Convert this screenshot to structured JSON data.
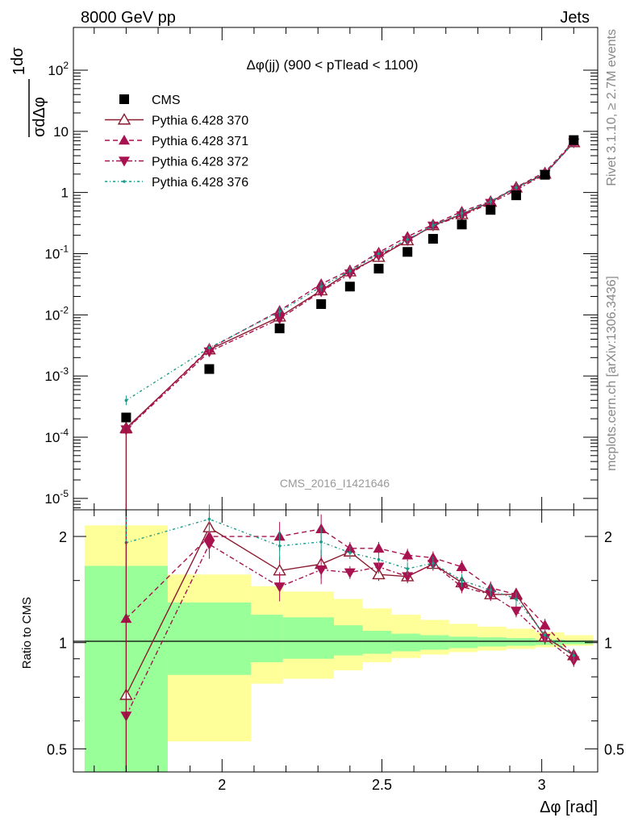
{
  "header": {
    "left": "8000 GeV pp",
    "right": "Jets",
    "side_top": "Rivet 3.1.10, ≥ 2.7M events",
    "side_bottom": "mcplots.cern.ch [arXiv:1306.3436]",
    "watermark": "CMS_2016_I1421646"
  },
  "chart_data": [
    {
      "type": "scatter",
      "title": "Δφ(jj) (900 < pTlead <  1100)",
      "ylabel": "1/σ dσ/dΔφ [rad⁻¹]",
      "yscale": "log",
      "xlim": [
        1.535,
        3.175
      ],
      "ylim": [
        6.5e-06,
        500
      ],
      "x_ticks": [
        "2",
        "2.5",
        "3"
      ],
      "y_ticks": [
        "10^-5",
        "10^-4",
        "10^-3",
        "10^-2",
        "10^-1",
        "1",
        "10",
        "10^2"
      ],
      "x": [
        1.7,
        1.96,
        2.18,
        2.31,
        2.4,
        2.49,
        2.58,
        2.66,
        2.75,
        2.84,
        2.92,
        3.01,
        3.1
      ],
      "data": {
        "name": "CMS",
        "color": "#000000",
        "values": [
          0.00021,
          0.0013,
          0.006,
          0.015,
          0.029,
          0.057,
          0.107,
          0.175,
          0.3,
          0.52,
          0.9,
          1.95,
          7.2
        ]
      },
      "series": [
        {
          "name": "Pythia 6.428 370",
          "color": "#8b1a2f",
          "marker": "triangle-open",
          "dash": "",
          "values": [
            0.00014,
            0.0027,
            0.0093,
            0.025,
            0.051,
            0.088,
            0.164,
            0.29,
            0.44,
            0.7,
            1.2,
            2.02,
            6.6
          ]
        },
        {
          "name": "Pythia 6.428 371",
          "color": "#a8124f",
          "marker": "triangle-up",
          "dash": "6,4",
          "values": [
            0.000135,
            0.0028,
            0.0117,
            0.032,
            0.054,
            0.105,
            0.19,
            0.3,
            0.49,
            0.72,
            1.22,
            2.15,
            6.8
          ]
        },
        {
          "name": "Pythia 6.428 372",
          "color": "#a8124f",
          "marker": "triangle-down",
          "dash": "6,3,2,3",
          "values": [
            0.000133,
            0.0025,
            0.0086,
            0.024,
            0.047,
            0.093,
            0.165,
            0.285,
            0.42,
            0.67,
            1.1,
            2.0,
            6.5
          ]
        },
        {
          "name": "Pythia 6.428 376",
          "color": "#1a9a88",
          "marker": "dot",
          "dash": "3,3,1,3",
          "values": [
            0.0004,
            0.0029,
            0.0112,
            0.029,
            0.052,
            0.1,
            0.17,
            0.29,
            0.46,
            0.71,
            1.2,
            2.05,
            6.55
          ]
        }
      ]
    },
    {
      "type": "line",
      "ylabel": "Ratio to CMS",
      "xlabel": "Δφ [rad]",
      "yscale": "log",
      "xlim": [
        1.535,
        3.175
      ],
      "ylim": [
        0.43,
        2.38
      ],
      "y_ticks": [
        "0.5",
        "1",
        "2"
      ],
      "reference": 1,
      "x": [
        1.7,
        1.96,
        2.18,
        2.31,
        2.4,
        2.49,
        2.58,
        2.66,
        2.75,
        2.84,
        2.92,
        3.01,
        3.1
      ],
      "band_edges": [
        1.57,
        1.83,
        2.09,
        2.19,
        2.35,
        2.44,
        2.53,
        2.62,
        2.71,
        2.8,
        2.89,
        2.98,
        3.07,
        3.16
      ],
      "stat_band": [
        [
          0.43,
          1.65
        ],
        [
          0.81,
          1.3
        ],
        [
          0.88,
          1.2
        ],
        [
          0.9,
          1.18
        ],
        [
          0.92,
          1.12
        ],
        [
          0.93,
          1.08
        ],
        [
          0.945,
          1.06
        ],
        [
          0.955,
          1.05
        ],
        [
          0.965,
          1.04
        ],
        [
          0.975,
          1.035
        ],
        [
          0.98,
          1.03
        ],
        [
          0.985,
          1.02
        ],
        [
          0.99,
          1.015
        ]
      ],
      "total_band": [
        [
          0.43,
          2.15
        ],
        [
          0.525,
          1.56
        ],
        [
          0.765,
          1.445
        ],
        [
          0.79,
          1.395
        ],
        [
          0.835,
          1.33
        ],
        [
          0.88,
          1.25
        ],
        [
          0.905,
          1.2
        ],
        [
          0.925,
          1.16
        ],
        [
          0.94,
          1.13
        ],
        [
          0.95,
          1.11
        ],
        [
          0.96,
          1.095
        ],
        [
          0.97,
          1.07
        ],
        [
          0.98,
          1.05
        ]
      ],
      "series": [
        {
          "name": "Pythia 6.428 370",
          "values": [
            0.71,
            2.12,
            1.6,
            1.67,
            1.81,
            1.56,
            1.54,
            1.67,
            1.48,
            1.37,
            1.37,
            1.04,
            0.92
          ]
        },
        {
          "name": "Pythia 6.428 371",
          "values": [
            1.17,
            2.0,
            2.0,
            2.1,
            1.85,
            1.85,
            1.77,
            1.74,
            1.64,
            1.43,
            1.37,
            1.12,
            0.92
          ]
        },
        {
          "name": "Pythia 6.428 372",
          "values": [
            0.62,
            1.9,
            1.44,
            1.61,
            1.58,
            1.64,
            1.54,
            1.67,
            1.44,
            1.37,
            1.23,
            1.03,
            0.89
          ]
        },
        {
          "name": "Pythia 6.428 376",
          "values": [
            1.92,
            2.24,
            1.88,
            1.93,
            1.8,
            1.72,
            1.62,
            1.68,
            1.5,
            1.41,
            1.33,
            1.05,
            0.92
          ]
        }
      ]
    }
  ]
}
